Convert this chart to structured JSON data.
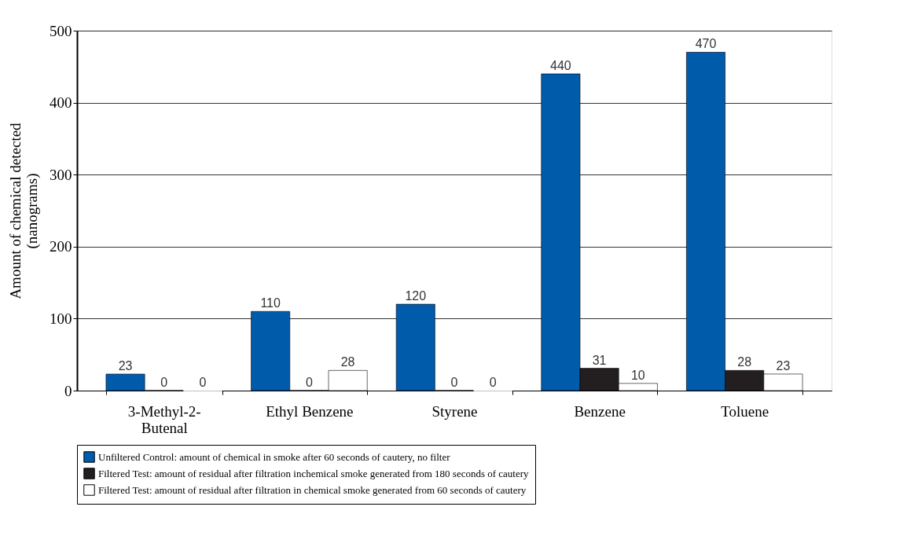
{
  "chart_data": {
    "type": "bar",
    "ylabel": "Amount of chemical detected\n(nanograms)",
    "categories": [
      "3-Methyl-2-\nButenal",
      "Ethyl Benzene",
      "Styrene",
      "Benzene",
      "Toluene"
    ],
    "series": [
      {
        "name": "Unfiltered Control: amount of chemical in smoke after 60 seconds of cautery, no filter",
        "color": "#005bab",
        "values": [
          23,
          110,
          120,
          440,
          470
        ]
      },
      {
        "name": "Filtered Test: amount of residual after filtration inchemical smoke generated from 180 seconds of cautery",
        "color": "#231f20",
        "values": [
          0,
          0,
          0,
          31,
          28
        ]
      },
      {
        "name": "Filtered Test: amount of residual after filtration in chemical smoke generated from 60 seconds of cautery",
        "color": "#ffffff",
        "values": [
          0,
          28,
          0,
          10,
          23
        ]
      }
    ],
    "ylim": [
      0,
      500
    ],
    "yticks": [
      0,
      100,
      200,
      300,
      400,
      500
    ],
    "grid": "y",
    "legend": "bottom",
    "data_labels": true
  }
}
